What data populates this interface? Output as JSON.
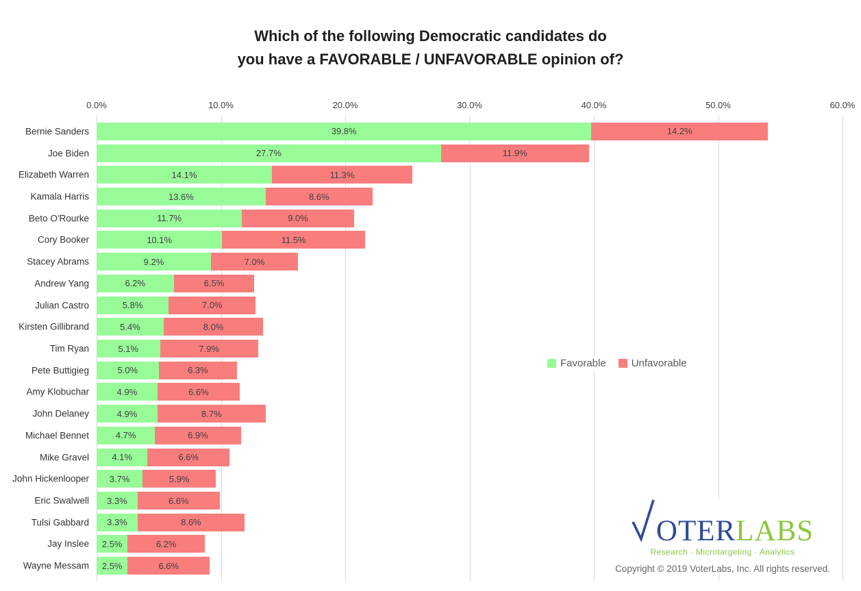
{
  "header": {
    "title_line1": "Which of the following Democratic candidates do",
    "title_line2": "you have a FAVORABLE / UNFAVORABLE opinion of?"
  },
  "chart_data": {
    "type": "bar",
    "orientation": "horizontal",
    "stacked": true,
    "title": "Which of the following Democratic candidates do you have a FAVORABLE / UNFAVORABLE opinion of?",
    "categories": [
      "Bernie Sanders",
      "Joe Biden",
      "Elizabeth Warren",
      "Kamala Harris",
      "Beto O'Rourke",
      "Cory Booker",
      "Stacey Abrams",
      "Andrew Yang",
      "Julian Castro",
      "Kirsten Gillibrand",
      "Tim Ryan",
      "Pete Buttigieg",
      "Amy Klobuchar",
      "John Delaney",
      "Michael Bennet",
      "Mike Gravel",
      "John Hickenlooper",
      "Eric Swalwell",
      "Tulsi Gabbard",
      "Jay Inslee",
      "Wayne Messam"
    ],
    "series": [
      {
        "name": "Favorable",
        "color": "#98FB98",
        "values": [
          39.8,
          27.7,
          14.1,
          13.6,
          11.7,
          10.1,
          9.2,
          6.2,
          5.8,
          5.4,
          5.1,
          5.0,
          4.9,
          4.9,
          4.7,
          4.1,
          3.7,
          3.3,
          3.3,
          2.5,
          2.5
        ],
        "labels": [
          "39.8%",
          "27.7%",
          "14.1%",
          "13.6%",
          "11.7%",
          "10.1%",
          "9.2%",
          "6.2%",
          "5.8%",
          "5.4%",
          "5.1%",
          "5.0%",
          "4.9%",
          "4.9%",
          "4.7%",
          "4.1%",
          "3.7%",
          "3.3%",
          "3.3%",
          "2.5%",
          "2.5%"
        ]
      },
      {
        "name": "Unfavorable",
        "color": "#FA7D7D",
        "values": [
          14.2,
          11.9,
          11.3,
          8.6,
          9.0,
          11.5,
          7.0,
          6.5,
          7.0,
          8.0,
          7.9,
          6.3,
          6.6,
          8.7,
          6.9,
          6.6,
          5.9,
          6.6,
          8.6,
          6.2,
          6.6
        ],
        "labels": [
          "14.2%",
          "11.9%",
          "11.3%",
          "8.6%",
          "9.0%",
          "11.5%",
          "7.0%",
          "6.5%",
          "7.0%",
          "8.0%",
          "7.9%",
          "6.3%",
          "6.6%",
          "8.7%",
          "6.9%",
          "6.6%",
          "5.9%",
          "6.6%",
          "8.6%",
          "6.2%",
          "6.6%"
        ]
      }
    ],
    "x_axis": {
      "position": "top",
      "min": 0,
      "max": 60,
      "tick_interval": 10,
      "tick_labels": [
        "0.0%",
        "10.0%",
        "20.0%",
        "30.0%",
        "40.0%",
        "50.0%",
        "60.0%"
      ],
      "gridlines": true
    },
    "legend": {
      "position": "middle-right",
      "entries": [
        "Favorable",
        "Unfavorable"
      ]
    },
    "data_labels": {
      "visible": true,
      "color": "#404040"
    }
  },
  "branding": {
    "logo_blue_text": "OTER",
    "logo_green_text": "LABS",
    "tagline": "Research  ·  Microtargeting  ·  Analytics",
    "copyright": "Copyright © 2019 VoterLabs, Inc. All rights reserved."
  },
  "colors": {
    "favorable": "#98FB98",
    "unfavorable": "#FA7D7D",
    "gridline": "#D9D9D9",
    "axis_text": "#404040",
    "logo_blue": "#2E4A99",
    "logo_green": "#8CC63E"
  }
}
